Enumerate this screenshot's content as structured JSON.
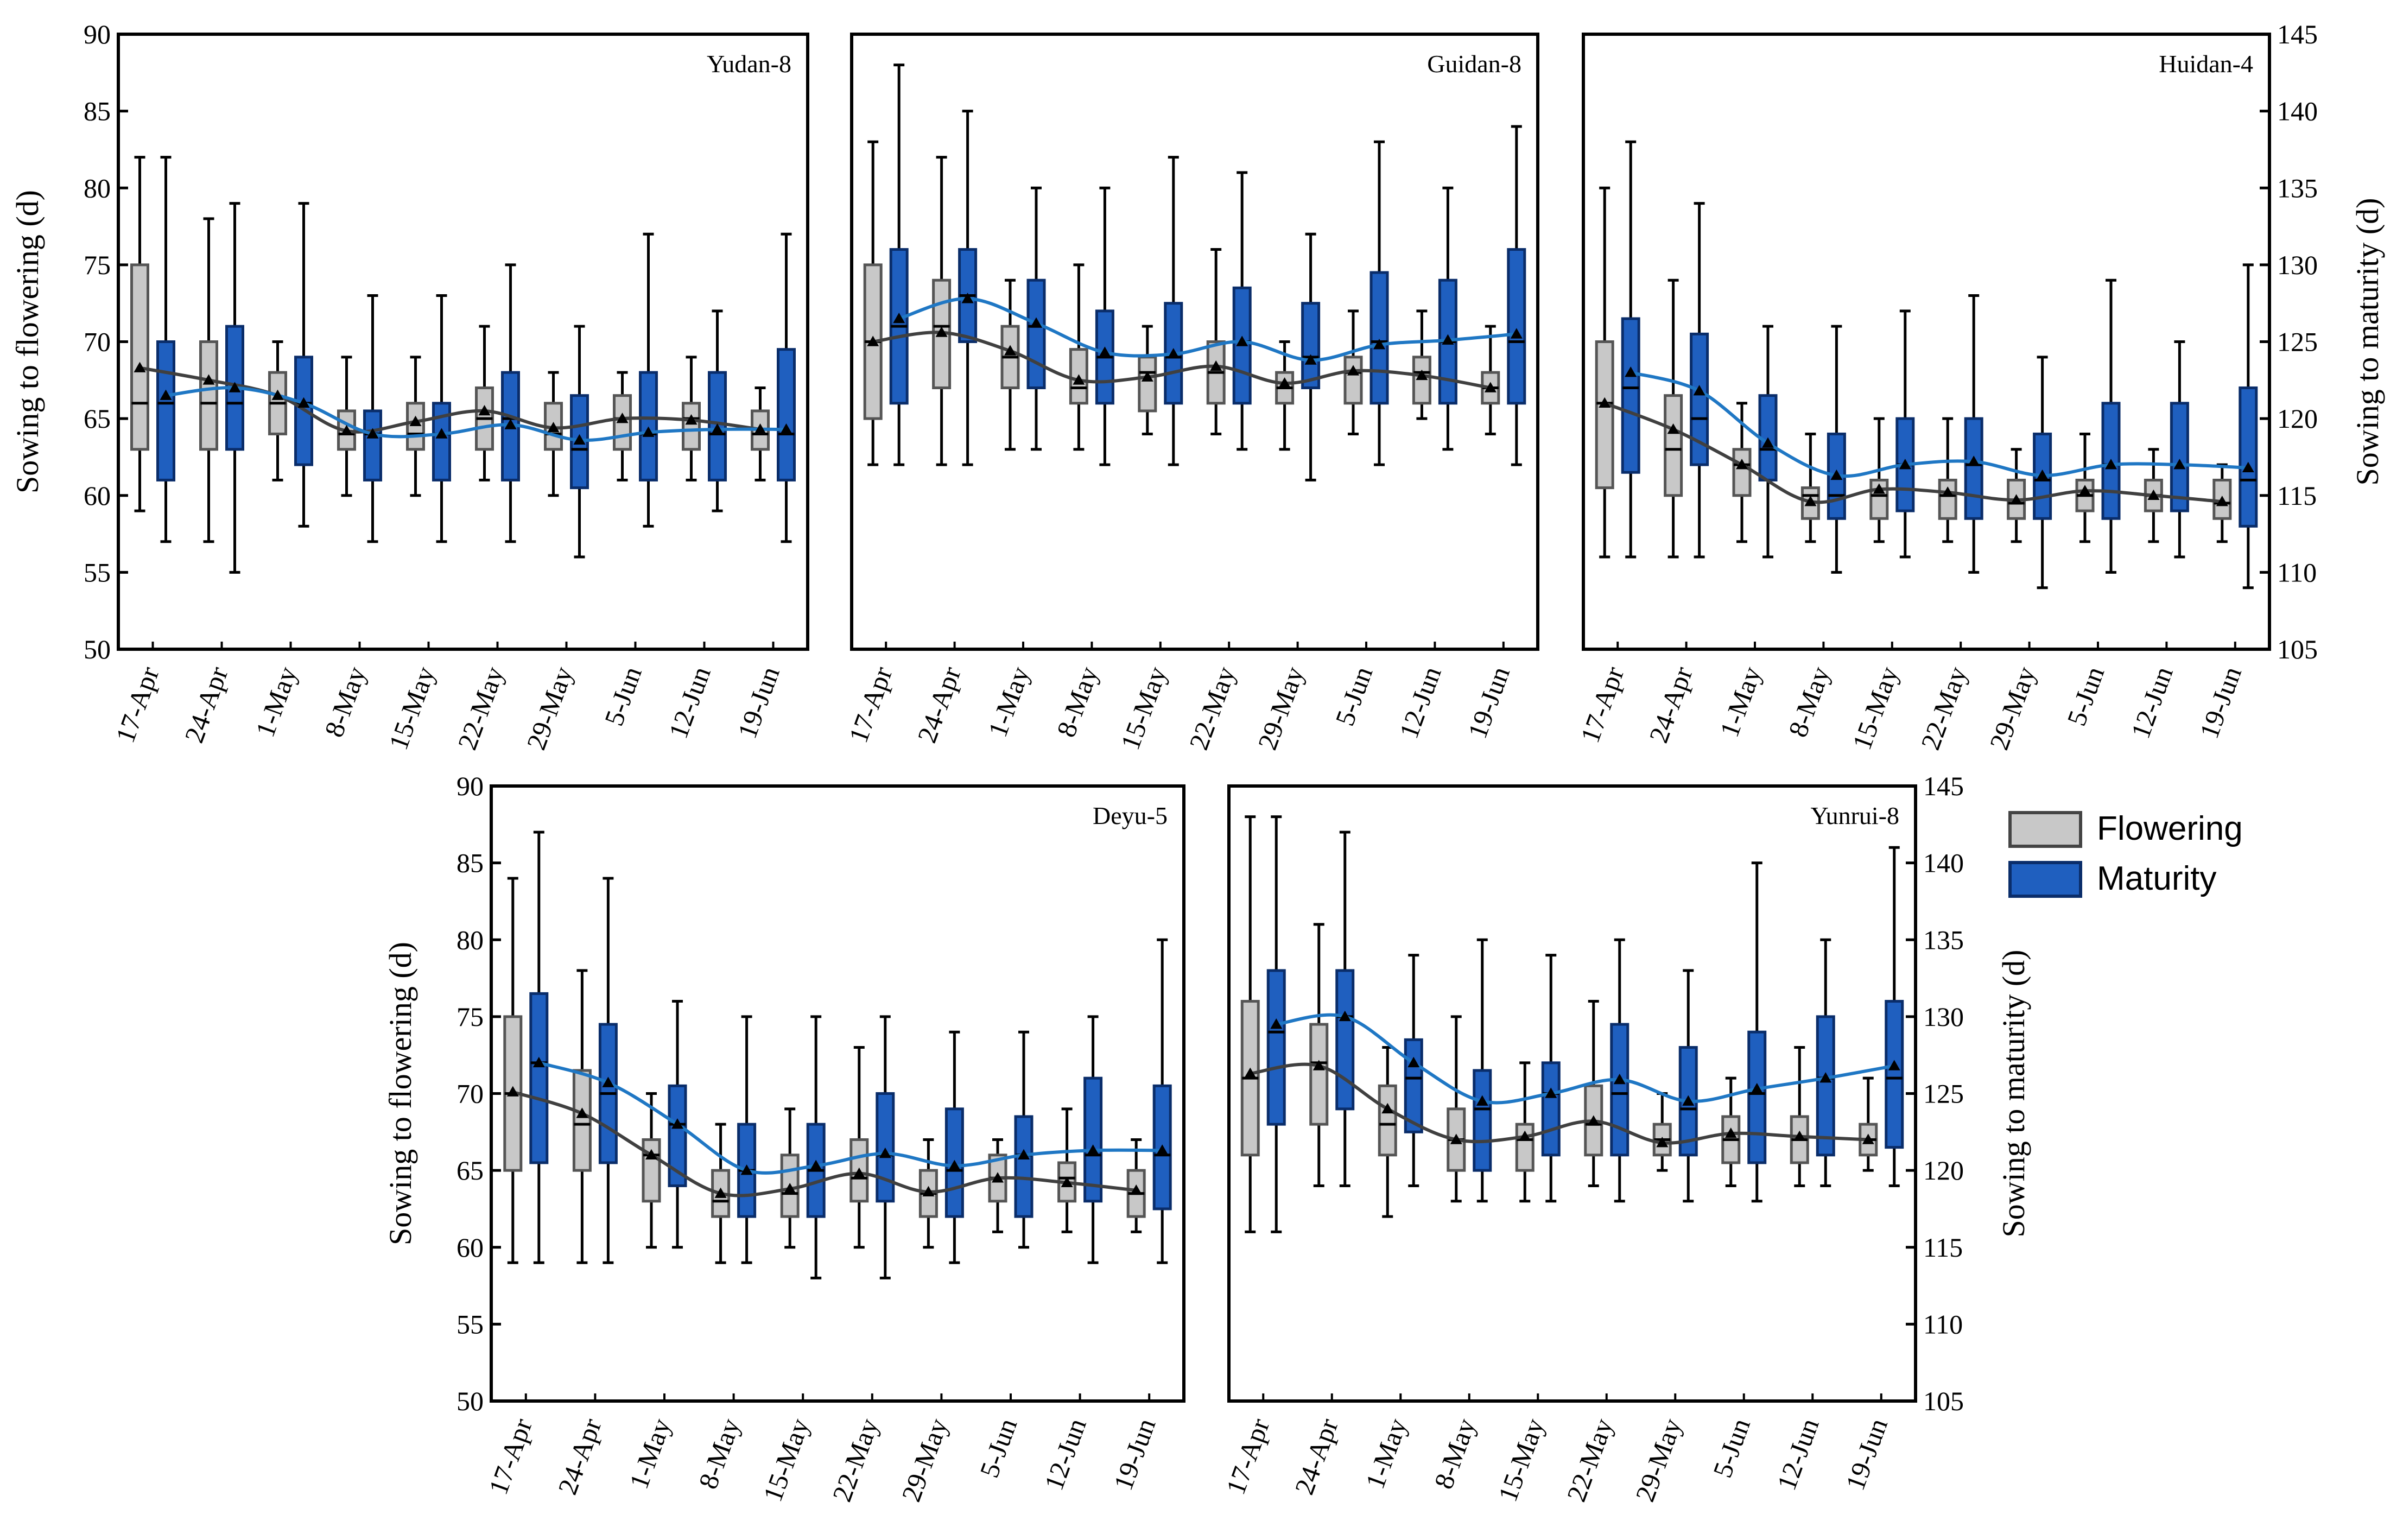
{
  "chart_data": {
    "type": "box",
    "categories": [
      "17-Apr",
      "24-Apr",
      "1-May",
      "8-May",
      "15-May",
      "22-May",
      "29-May",
      "5-Jun",
      "12-Jun",
      "19-Jun"
    ],
    "left_axis": {
      "label": "Sowing to flowering (d)",
      "range": [
        50,
        90
      ],
      "ticks": [
        "50",
        "55",
        "60",
        "65",
        "70",
        "75",
        "80",
        "85",
        "90"
      ]
    },
    "right_axis": {
      "label": "Sowing to maturity (d)",
      "range": [
        105,
        145
      ],
      "ticks": [
        "105",
        "110",
        "115",
        "120",
        "125",
        "130",
        "135",
        "140",
        "145"
      ]
    },
    "legend": {
      "position": "right",
      "items": [
        {
          "name": "Flowering",
          "color": "#c8c8c8"
        },
        {
          "name": "Maturity",
          "color": "#1f5fbf"
        }
      ]
    },
    "colors": {
      "flowering_fill": "#c8c8c8",
      "flowering_line": "#404040",
      "maturity_fill": "#1f5fbf",
      "maturity_line": "#1f77c4"
    },
    "panels": [
      {
        "title": "Yudan-8",
        "flowering": [
          {
            "min": 59,
            "q1": 63,
            "median": 66,
            "q3": 75,
            "max": 82,
            "mean": 68.3
          },
          {
            "min": 57,
            "q1": 63,
            "median": 66,
            "q3": 70,
            "max": 78,
            "mean": 67.5
          },
          {
            "min": 61,
            "q1": 64,
            "median": 66,
            "q3": 68,
            "max": 70,
            "mean": 66.5
          },
          {
            "min": 60,
            "q1": 63,
            "median": 64,
            "q3": 65.5,
            "max": 69,
            "mean": 64.2
          },
          {
            "min": 60,
            "q1": 63,
            "median": 64,
            "q3": 66,
            "max": 69,
            "mean": 64.8
          },
          {
            "min": 61,
            "q1": 63,
            "median": 65,
            "q3": 67,
            "max": 71,
            "mean": 65.5
          },
          {
            "min": 60,
            "q1": 63,
            "median": 64,
            "q3": 66,
            "max": 68,
            "mean": 64.4
          },
          {
            "min": 61,
            "q1": 63,
            "median": 65,
            "q3": 66.5,
            "max": 68,
            "mean": 65
          },
          {
            "min": 61,
            "q1": 63,
            "median": 65,
            "q3": 66,
            "max": 69,
            "mean": 64.9
          },
          {
            "min": 61,
            "q1": 63,
            "median": 64,
            "q3": 65.5,
            "max": 67,
            "mean": 64.3
          }
        ],
        "maturity": [
          {
            "min": 112,
            "q1": 116,
            "median": 121,
            "q3": 125,
            "max": 137,
            "mean": 121.5
          },
          {
            "min": 110,
            "q1": 118,
            "median": 121,
            "q3": 126,
            "max": 134,
            "mean": 122
          },
          {
            "min": 113,
            "q1": 117,
            "median": 121,
            "q3": 124,
            "max": 134,
            "mean": 121
          },
          {
            "min": 112,
            "q1": 116,
            "median": 119,
            "q3": 120.5,
            "max": 128,
            "mean": 119
          },
          {
            "min": 112,
            "q1": 116,
            "median": 119,
            "q3": 121,
            "max": 128,
            "mean": 119
          },
          {
            "min": 112,
            "q1": 116,
            "median": 120,
            "q3": 123,
            "max": 130,
            "mean": 119.6
          },
          {
            "min": 111,
            "q1": 115.5,
            "median": 118,
            "q3": 121.5,
            "max": 126,
            "mean": 118.6
          },
          {
            "min": 113,
            "q1": 116,
            "median": 119,
            "q3": 123,
            "max": 132,
            "mean": 119.1
          },
          {
            "min": 114,
            "q1": 116,
            "median": 119,
            "q3": 123,
            "max": 127,
            "mean": 119.3
          },
          {
            "min": 112,
            "q1": 116,
            "median": 119,
            "q3": 124.5,
            "max": 132,
            "mean": 119.3
          }
        ]
      },
      {
        "title": "Guidan-8",
        "flowering": [
          {
            "min": 62,
            "q1": 65,
            "median": 70,
            "q3": 75,
            "max": 83,
            "mean": 70
          },
          {
            "min": 62,
            "q1": 67,
            "median": 71,
            "q3": 74,
            "max": 82,
            "mean": 70.6
          },
          {
            "min": 63,
            "q1": 67,
            "median": 69,
            "q3": 71,
            "max": 74,
            "mean": 69.4
          },
          {
            "min": 63,
            "q1": 66,
            "median": 67,
            "q3": 69.5,
            "max": 75,
            "mean": 67.5
          },
          {
            "min": 64,
            "q1": 65.5,
            "median": 68,
            "q3": 69,
            "max": 71,
            "mean": 67.7
          },
          {
            "min": 64,
            "q1": 66,
            "median": 68,
            "q3": 70,
            "max": 76,
            "mean": 68.4
          },
          {
            "min": 63,
            "q1": 66,
            "median": 67,
            "q3": 68,
            "max": 70,
            "mean": 67.3
          },
          {
            "min": 64,
            "q1": 66,
            "median": 68,
            "q3": 69,
            "max": 72,
            "mean": 68.1
          },
          {
            "min": 65,
            "q1": 66,
            "median": 68,
            "q3": 69,
            "max": 72,
            "mean": 67.8
          },
          {
            "min": 64,
            "q1": 66,
            "median": 67,
            "q3": 68,
            "max": 71,
            "mean": 67
          }
        ],
        "maturity": [
          {
            "min": 117,
            "q1": 121,
            "median": 126,
            "q3": 131,
            "max": 143,
            "mean": 126.5
          },
          {
            "min": 117,
            "q1": 125,
            "median": 128,
            "q3": 131,
            "max": 140,
            "mean": 127.8
          },
          {
            "min": 118,
            "q1": 122,
            "median": 126,
            "q3": 129,
            "max": 135,
            "mean": 126.2
          },
          {
            "min": 117,
            "q1": 121,
            "median": 124,
            "q3": 127,
            "max": 135,
            "mean": 124.3
          },
          {
            "min": 117,
            "q1": 121,
            "median": 124,
            "q3": 127.5,
            "max": 137,
            "mean": 124.2
          },
          {
            "min": 118,
            "q1": 121,
            "median": 125,
            "q3": 128.5,
            "max": 136,
            "mean": 125
          },
          {
            "min": 116,
            "q1": 122,
            "median": 124,
            "q3": 127.5,
            "max": 132,
            "mean": 123.8
          },
          {
            "min": 117,
            "q1": 121,
            "median": 125,
            "q3": 129.5,
            "max": 138,
            "mean": 124.8
          },
          {
            "min": 118,
            "q1": 121,
            "median": 125,
            "q3": 129,
            "max": 135,
            "mean": 125.1
          },
          {
            "min": 117,
            "q1": 121,
            "median": 125,
            "q3": 131,
            "max": 139,
            "mean": 125.5
          }
        ]
      },
      {
        "title": "Huidan-4",
        "flowering": [
          {
            "min": 56,
            "q1": 60.5,
            "median": 66,
            "q3": 70,
            "max": 80,
            "mean": 66
          },
          {
            "min": 56,
            "q1": 60,
            "median": 63,
            "q3": 66.5,
            "max": 74,
            "mean": 64.3
          },
          {
            "min": 57,
            "q1": 60,
            "median": 62,
            "q3": 63,
            "max": 66,
            "mean": 62
          },
          {
            "min": 57,
            "q1": 58.5,
            "median": 60,
            "q3": 60.5,
            "max": 64,
            "mean": 59.6
          },
          {
            "min": 57,
            "q1": 58.5,
            "median": 60,
            "q3": 61,
            "max": 65,
            "mean": 60.4
          },
          {
            "min": 57,
            "q1": 58.5,
            "median": 60,
            "q3": 61,
            "max": 65,
            "mean": 60.2
          },
          {
            "min": 57,
            "q1": 58.5,
            "median": 59.5,
            "q3": 61,
            "max": 63,
            "mean": 59.7
          },
          {
            "min": 57,
            "q1": 59,
            "median": 60,
            "q3": 61,
            "max": 64,
            "mean": 60.3
          },
          {
            "min": 57,
            "q1": 59,
            "median": 60,
            "q3": 61,
            "max": 63,
            "mean": 60
          },
          {
            "min": 57,
            "q1": 58.5,
            "median": 59.5,
            "q3": 61,
            "max": 62,
            "mean": 59.6
          }
        ],
        "maturity": [
          {
            "min": 111,
            "q1": 116.5,
            "median": 122,
            "q3": 126.5,
            "max": 138,
            "mean": 123
          },
          {
            "min": 111,
            "q1": 117,
            "median": 120,
            "q3": 125.5,
            "max": 134,
            "mean": 121.8
          },
          {
            "min": 111,
            "q1": 116,
            "median": 118,
            "q3": 121.5,
            "max": 126,
            "mean": 118.4
          },
          {
            "min": 110,
            "q1": 113.5,
            "median": 115,
            "q3": 119,
            "max": 126,
            "mean": 116.3
          },
          {
            "min": 111,
            "q1": 114,
            "median": 117,
            "q3": 120,
            "max": 127,
            "mean": 117
          },
          {
            "min": 110,
            "q1": 113.5,
            "median": 117,
            "q3": 120,
            "max": 128,
            "mean": 117.2
          },
          {
            "min": 109,
            "q1": 113.5,
            "median": 116,
            "q3": 119,
            "max": 124,
            "mean": 116.3
          },
          {
            "min": 110,
            "q1": 113.5,
            "median": 117,
            "q3": 121,
            "max": 129,
            "mean": 117
          },
          {
            "min": 111,
            "q1": 114,
            "median": 117,
            "q3": 121,
            "max": 125,
            "mean": 117
          },
          {
            "min": 109,
            "q1": 113,
            "median": 116,
            "q3": 122,
            "max": 130,
            "mean": 116.8
          }
        ]
      },
      {
        "title": "Deyu-5",
        "flowering": [
          {
            "min": 59,
            "q1": 65,
            "median": 70,
            "q3": 75,
            "max": 84,
            "mean": 70.1
          },
          {
            "min": 59,
            "q1": 65,
            "median": 68,
            "q3": 71.5,
            "max": 78,
            "mean": 68.7
          },
          {
            "min": 60,
            "q1": 63,
            "median": 66,
            "q3": 67,
            "max": 70,
            "mean": 66
          },
          {
            "min": 59,
            "q1": 62,
            "median": 63,
            "q3": 65,
            "max": 68,
            "mean": 63.5
          },
          {
            "min": 60,
            "q1": 62,
            "median": 63.5,
            "q3": 66,
            "max": 69,
            "mean": 63.8
          },
          {
            "min": 60,
            "q1": 63,
            "median": 64.5,
            "q3": 67,
            "max": 73,
            "mean": 64.8
          },
          {
            "min": 60,
            "q1": 62,
            "median": 63.5,
            "q3": 65,
            "max": 67,
            "mean": 63.6
          },
          {
            "min": 61,
            "q1": 63,
            "median": 64.5,
            "q3": 66,
            "max": 67,
            "mean": 64.5
          },
          {
            "min": 61,
            "q1": 63,
            "median": 64.5,
            "q3": 65.5,
            "max": 69,
            "mean": 64.2
          },
          {
            "min": 61,
            "q1": 62,
            "median": 63.5,
            "q3": 65,
            "max": 67,
            "mean": 63.7
          }
        ],
        "maturity": [
          {
            "min": 114,
            "q1": 120.5,
            "median": 127,
            "q3": 131.5,
            "max": 142,
            "mean": 127
          },
          {
            "min": 114,
            "q1": 120.5,
            "median": 125,
            "q3": 129.5,
            "max": 139,
            "mean": 125.7
          },
          {
            "min": 115,
            "q1": 119,
            "median": 123,
            "q3": 125.5,
            "max": 131,
            "mean": 123
          },
          {
            "min": 114,
            "q1": 117,
            "median": 120,
            "q3": 123,
            "max": 130,
            "mean": 120
          },
          {
            "min": 113,
            "q1": 117,
            "median": 120,
            "q3": 123,
            "max": 130,
            "mean": 120.3
          },
          {
            "min": 113,
            "q1": 118,
            "median": 121,
            "q3": 125,
            "max": 130,
            "mean": 121.1
          },
          {
            "min": 114,
            "q1": 117,
            "median": 120,
            "q3": 124,
            "max": 129,
            "mean": 120.3
          },
          {
            "min": 115,
            "q1": 117,
            "median": 121,
            "q3": 123.5,
            "max": 129,
            "mean": 121
          },
          {
            "min": 114,
            "q1": 118,
            "median": 121,
            "q3": 126,
            "max": 130,
            "mean": 121.3
          },
          {
            "min": 114,
            "q1": 117.5,
            "median": 121,
            "q3": 125.5,
            "max": 135,
            "mean": 121.3
          }
        ]
      },
      {
        "title": "Yunrui-8",
        "flowering": [
          {
            "min": 61,
            "q1": 66,
            "median": 71,
            "q3": 76,
            "max": 88,
            "mean": 71.3
          },
          {
            "min": 64,
            "q1": 68,
            "median": 72,
            "q3": 74.5,
            "max": 81,
            "mean": 71.8
          },
          {
            "min": 62,
            "q1": 66,
            "median": 68,
            "q3": 70.5,
            "max": 73,
            "mean": 69
          },
          {
            "min": 63,
            "q1": 65,
            "median": 67,
            "q3": 69,
            "max": 75,
            "mean": 67
          },
          {
            "min": 63,
            "q1": 65,
            "median": 67,
            "q3": 68,
            "max": 72,
            "mean": 67.2
          },
          {
            "min": 64,
            "q1": 66,
            "median": 68,
            "q3": 70.5,
            "max": 76,
            "mean": 68.2
          },
          {
            "min": 65,
            "q1": 66,
            "median": 67,
            "q3": 68,
            "max": 70,
            "mean": 66.8
          },
          {
            "min": 64,
            "q1": 65.5,
            "median": 67,
            "q3": 68.5,
            "max": 71,
            "mean": 67.4
          },
          {
            "min": 64,
            "q1": 65.5,
            "median": 67,
            "q3": 68.5,
            "max": 73,
            "mean": 67.2
          },
          {
            "min": 65,
            "q1": 66,
            "median": 67,
            "q3": 68,
            "max": 71,
            "mean": 67
          }
        ],
        "maturity": [
          {
            "min": 116,
            "q1": 123,
            "median": 129,
            "q3": 133,
            "max": 143,
            "mean": 129.5
          },
          {
            "min": 119,
            "q1": 124,
            "median": 130,
            "q3": 133,
            "max": 142,
            "mean": 130
          },
          {
            "min": 119,
            "q1": 122.5,
            "median": 126,
            "q3": 128.5,
            "max": 134,
            "mean": 127
          },
          {
            "min": 118,
            "q1": 120,
            "median": 124,
            "q3": 126.5,
            "max": 135,
            "mean": 124.5
          },
          {
            "min": 118,
            "q1": 121,
            "median": 125,
            "q3": 127,
            "max": 134,
            "mean": 125
          },
          {
            "min": 118,
            "q1": 121,
            "median": 125,
            "q3": 129.5,
            "max": 135,
            "mean": 125.9
          },
          {
            "min": 118,
            "q1": 121,
            "median": 124,
            "q3": 128,
            "max": 133,
            "mean": 124.5
          },
          {
            "min": 118,
            "q1": 120.5,
            "median": 125,
            "q3": 129,
            "max": 140,
            "mean": 125.3
          },
          {
            "min": 119,
            "q1": 121,
            "median": 126,
            "q3": 130,
            "max": 135,
            "mean": 126
          },
          {
            "min": 119,
            "q1": 121.5,
            "median": 126,
            "q3": 131,
            "max": 141,
            "mean": 126.8
          }
        ]
      }
    ]
  }
}
